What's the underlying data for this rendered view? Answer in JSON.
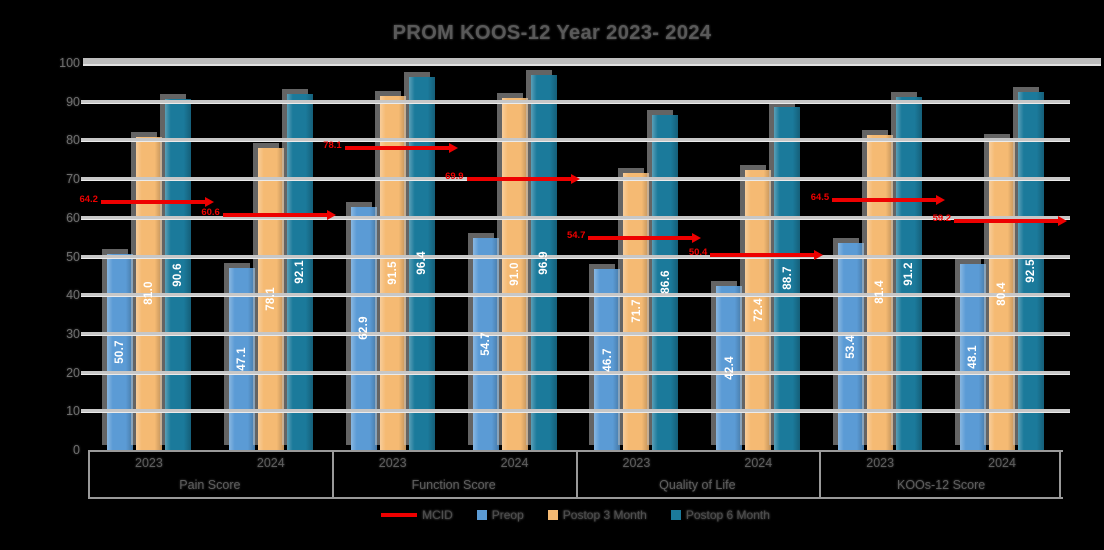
{
  "title": "PROM KOOS-12 Year 2023- 2024",
  "colors": {
    "preop": "#5B9BD5",
    "postop3": "#F5BA73",
    "postop6": "#1B7A9B",
    "mcid": "#EE0000",
    "gridline": "#C7C7C7",
    "axis_line": "#9A9A9A",
    "axis_text": "#5E5E5E",
    "bar_label": "#FFFFFF"
  },
  "legend": {
    "items": [
      {
        "label": "MCID",
        "type": "line",
        "color": "#EE0000"
      },
      {
        "label": "Preop",
        "type": "square",
        "color": "#5B9BD5"
      },
      {
        "label": "Postop 3 Month",
        "type": "square",
        "color": "#F5BA73"
      },
      {
        "label": "Postop 6 Month",
        "type": "square",
        "color": "#1B7A9B"
      }
    ]
  },
  "chart_data": {
    "type": "bar",
    "title": "PROM KOOS-12 Year 2023- 2024",
    "ylim": [
      0,
      100
    ],
    "yticks": [
      0,
      10,
      20,
      30,
      40,
      50,
      60,
      70,
      80,
      90,
      100
    ],
    "grid": true,
    "legend_position": "bottom",
    "series_names": [
      "Preop",
      "Postop 3 Month",
      "Postop 6 Month"
    ],
    "groups": [
      {
        "label": "Pain Score",
        "years": [
          {
            "label": "2023",
            "values": [
              50.7,
              81.0,
              90.6
            ],
            "mcid": 64.2
          },
          {
            "label": "2024",
            "values": [
              47.1,
              78.1,
              92.1
            ],
            "mcid": 60.6
          }
        ]
      },
      {
        "label": "Function Score",
        "years": [
          {
            "label": "2023",
            "values": [
              62.9,
              91.5,
              96.4
            ],
            "mcid": 78.1
          },
          {
            "label": "2024",
            "values": [
              54.7,
              91.0,
              96.9
            ],
            "mcid": 69.9
          }
        ]
      },
      {
        "label": "Quality of Life",
        "years": [
          {
            "label": "2023",
            "values": [
              46.7,
              71.7,
              86.6
            ],
            "mcid": 54.7
          },
          {
            "label": "2024",
            "values": [
              42.4,
              72.4,
              88.7
            ],
            "mcid": 50.4
          }
        ]
      },
      {
        "label": "KOOs-12 Score",
        "years": [
          {
            "label": "2023",
            "values": [
              53.4,
              81.4,
              91.2
            ],
            "mcid": 64.5
          },
          {
            "label": "2024",
            "values": [
              48.1,
              80.4,
              92.5
            ],
            "mcid": 59.2
          }
        ]
      }
    ]
  }
}
